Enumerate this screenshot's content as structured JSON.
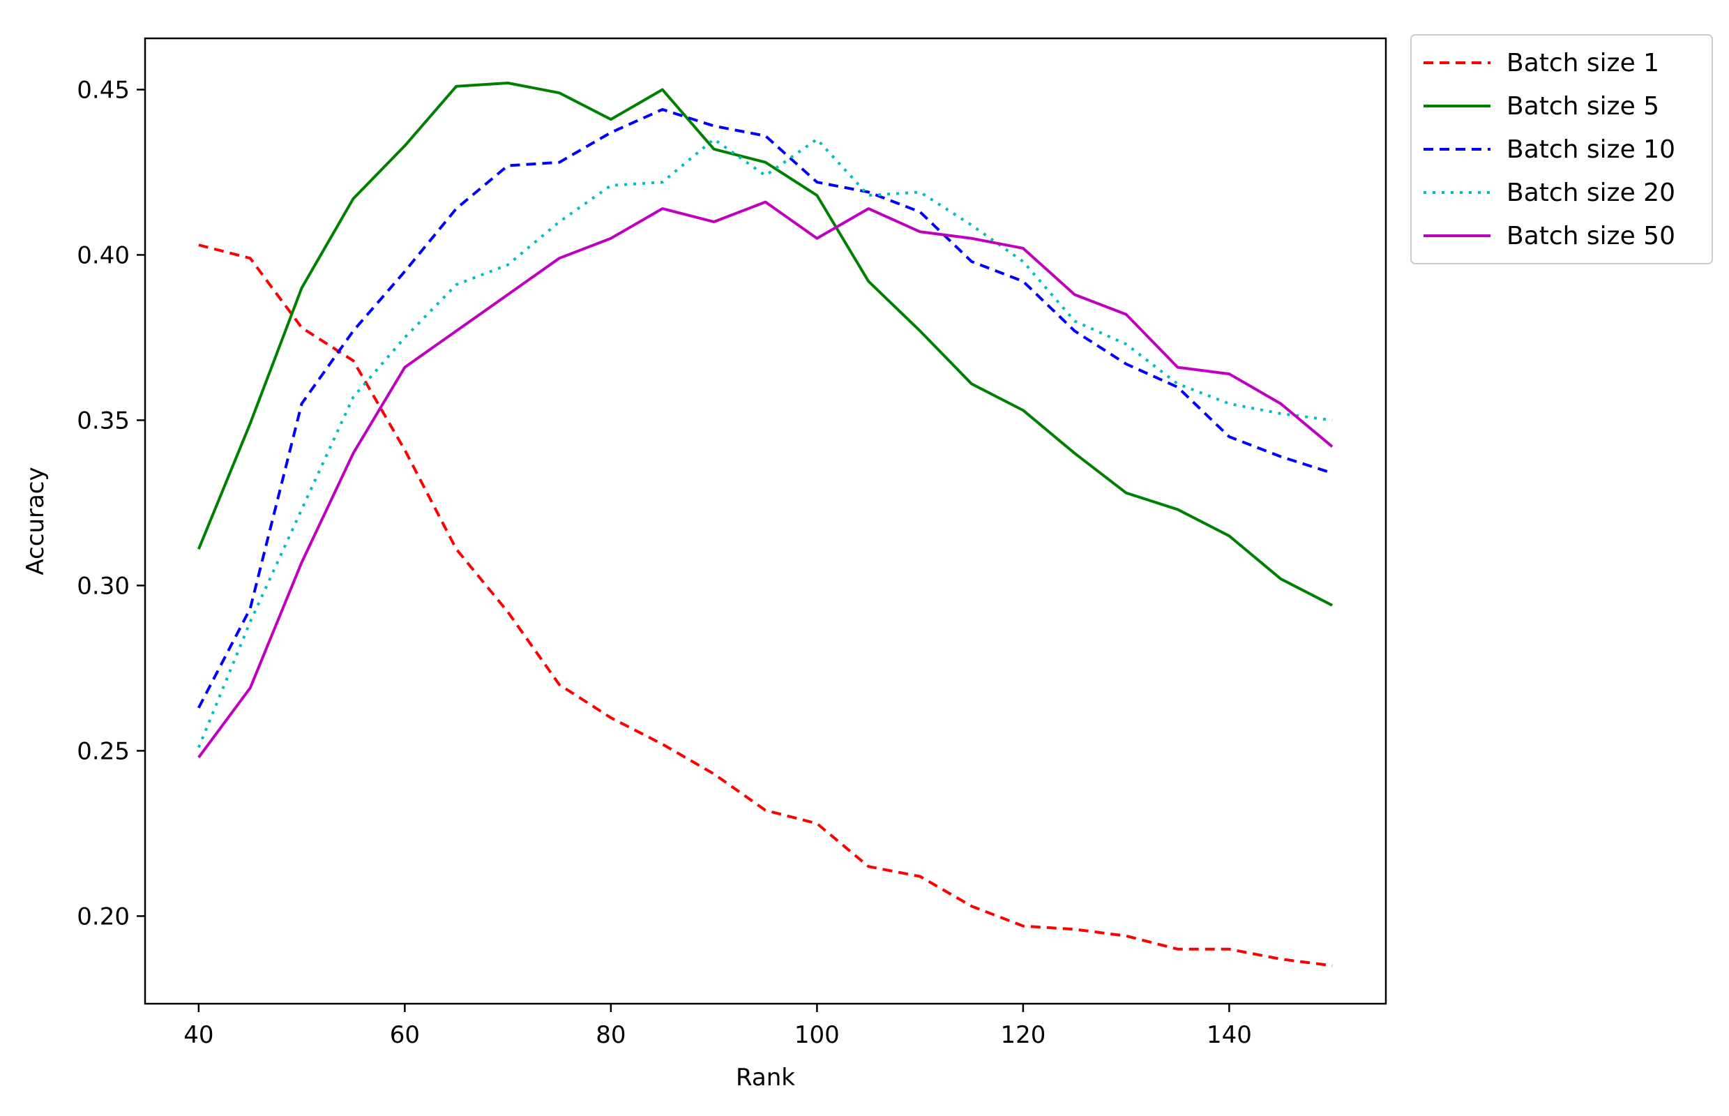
{
  "chart_data": {
    "type": "line",
    "title": "",
    "xlabel": "Rank",
    "ylabel": "Accuracy",
    "xlim": [
      34.8,
      155.2
    ],
    "ylim": [
      0.1735,
      0.4655
    ],
    "x_ticks": [
      40,
      60,
      80,
      100,
      120,
      140
    ],
    "x_tick_labels": [
      "40",
      "60",
      "80",
      "100",
      "120",
      "140"
    ],
    "y_ticks": [
      0.2,
      0.25,
      0.3,
      0.35,
      0.4,
      0.45
    ],
    "y_tick_labels": [
      "0.20",
      "0.25",
      "0.30",
      "0.35",
      "0.40",
      "0.45"
    ],
    "grid": false,
    "legend_position": "outside-top-right",
    "x": [
      40,
      45,
      50,
      55,
      60,
      65,
      70,
      75,
      80,
      85,
      90,
      95,
      100,
      105,
      110,
      115,
      120,
      125,
      130,
      135,
      140,
      145,
      150
    ],
    "series": [
      {
        "name": "Batch size 1",
        "color": "#ff0000",
        "style": "dashed",
        "values": [
          0.403,
          0.399,
          0.378,
          0.368,
          0.341,
          0.311,
          0.292,
          0.27,
          0.26,
          0.252,
          0.243,
          0.232,
          0.228,
          0.215,
          0.212,
          0.203,
          0.197,
          0.196,
          0.194,
          0.19,
          0.19,
          0.187,
          0.185
        ]
      },
      {
        "name": "Batch size 5",
        "color": "#008000",
        "style": "solid",
        "values": [
          0.311,
          0.349,
          0.39,
          0.417,
          0.433,
          0.451,
          0.452,
          0.449,
          0.441,
          0.45,
          0.432,
          0.428,
          0.418,
          0.392,
          0.377,
          0.361,
          0.353,
          0.34,
          0.328,
          0.323,
          0.315,
          0.302,
          0.294
        ]
      },
      {
        "name": "Batch size 10",
        "color": "#0000ff",
        "style": "dashed",
        "values": [
          0.263,
          0.293,
          0.355,
          0.377,
          0.395,
          0.414,
          0.427,
          0.428,
          0.437,
          0.444,
          0.439,
          0.436,
          0.422,
          0.419,
          0.413,
          0.398,
          0.392,
          0.377,
          0.367,
          0.36,
          0.345,
          0.339,
          0.334
        ]
      },
      {
        "name": "Batch size 20",
        "color": "#00bfbf",
        "style": "dotted",
        "values": [
          0.251,
          0.289,
          0.323,
          0.357,
          0.375,
          0.391,
          0.397,
          0.41,
          0.421,
          0.422,
          0.435,
          0.424,
          0.435,
          0.418,
          0.419,
          0.409,
          0.398,
          0.38,
          0.373,
          0.361,
          0.355,
          0.352,
          0.35
        ]
      },
      {
        "name": "Batch size 50",
        "color": "#bf00bf",
        "style": "solid",
        "values": [
          0.248,
          0.269,
          0.307,
          0.34,
          0.366,
          0.377,
          0.388,
          0.399,
          0.405,
          0.414,
          0.41,
          0.416,
          0.405,
          0.414,
          0.407,
          0.405,
          0.402,
          0.388,
          0.382,
          0.366,
          0.364,
          0.355,
          0.342
        ]
      }
    ]
  }
}
